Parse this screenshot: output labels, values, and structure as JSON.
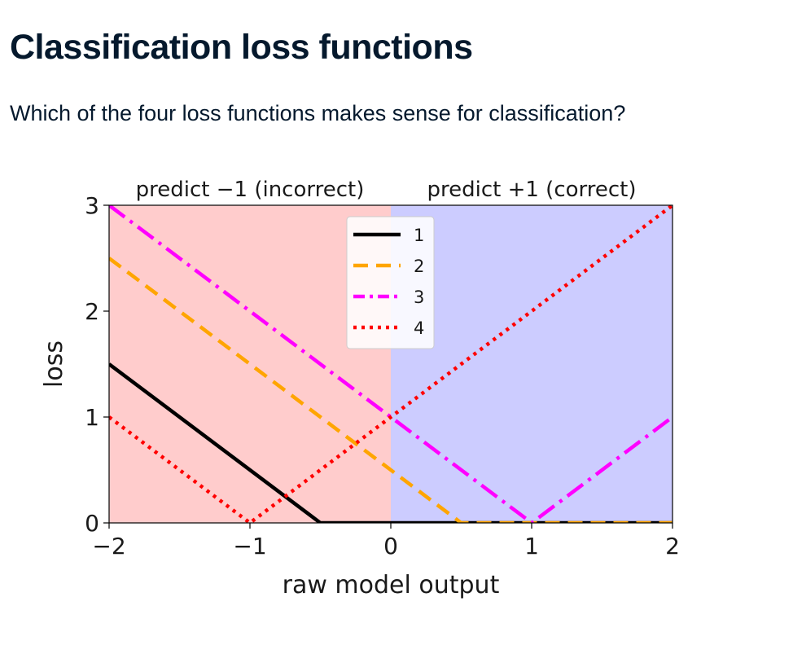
{
  "slide": {
    "title": "Classification loss functions",
    "question": "Which of the four loss functions makes sense for classification?"
  },
  "chart_data": {
    "type": "line",
    "title": "",
    "xlabel": "raw model output",
    "ylabel": "loss",
    "xlim": [
      -2,
      2
    ],
    "ylim": [
      0,
      3
    ],
    "xticks": [
      -2,
      -1,
      0,
      1,
      2
    ],
    "yticks": [
      0,
      1,
      2,
      3
    ],
    "grid": false,
    "legend_position": "upper-center",
    "region_labels": [
      {
        "text": "predict −1 (incorrect)",
        "x_from": -2,
        "x_to": 0,
        "color": "#ffcccc"
      },
      {
        "text": "predict +1 (correct)",
        "x_from": 0,
        "x_to": 2,
        "color": "#ccccff"
      }
    ],
    "series": [
      {
        "name": "1",
        "color": "#000000",
        "style": "solid",
        "points": [
          [
            -2,
            1.5
          ],
          [
            -0.5,
            0
          ],
          [
            2,
            0
          ]
        ]
      },
      {
        "name": "2",
        "color": "#ffa500",
        "style": "dashed",
        "points": [
          [
            -2,
            2.5
          ],
          [
            0.5,
            0
          ],
          [
            2,
            0
          ]
        ]
      },
      {
        "name": "3",
        "color": "#ff00ff",
        "style": "dashdot",
        "points": [
          [
            -2,
            3
          ],
          [
            1,
            0
          ],
          [
            2,
            1
          ]
        ]
      },
      {
        "name": "4",
        "color": "#ff0000",
        "style": "dotted",
        "points": [
          [
            -2,
            1
          ],
          [
            -1,
            0
          ],
          [
            2,
            3
          ]
        ]
      }
    ]
  }
}
